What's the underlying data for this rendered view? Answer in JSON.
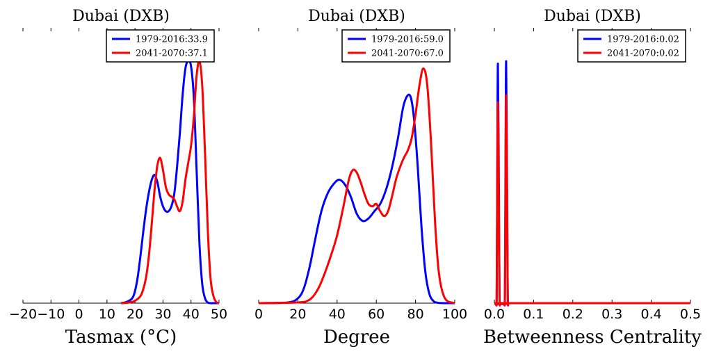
{
  "chart_data": [
    {
      "type": "line",
      "title": "Dubai (DXB)",
      "xlabel": "Tasmax ($^\\circ$C)",
      "xlabel_display": "Tasmax (°C)",
      "ylabel": "",
      "xlim": [
        -20,
        50
      ],
      "ylim": [
        0,
        1
      ],
      "xticks": [
        -20,
        -10,
        0,
        10,
        20,
        30,
        40,
        50
      ],
      "xtick_labels": [
        "−20",
        "−10",
        "0",
        "10",
        "20",
        "30",
        "40",
        "50"
      ],
      "legend_position": "top-right",
      "series": [
        {
          "name": "1979-2016:33.9",
          "color": "#0000ff",
          "x": [
            15,
            17,
            19,
            20,
            21,
            22,
            23,
            24,
            25,
            26,
            27,
            28,
            29,
            30,
            31,
            32,
            33,
            34,
            35,
            36,
            37,
            38,
            39,
            40,
            41,
            42,
            43,
            44,
            45,
            46,
            47,
            48,
            50
          ],
          "y": [
            0,
            0.005,
            0.02,
            0.05,
            0.11,
            0.2,
            0.3,
            0.39,
            0.46,
            0.51,
            0.53,
            0.5,
            0.44,
            0.4,
            0.38,
            0.38,
            0.4,
            0.45,
            0.56,
            0.7,
            0.86,
            0.97,
            1.0,
            0.98,
            0.85,
            0.55,
            0.25,
            0.08,
            0.02,
            0.003,
            0,
            0,
            0
          ]
        },
        {
          "name": "2041-2070:37.1",
          "color": "#ff0000",
          "x": [
            15,
            18,
            20,
            22,
            23,
            24,
            25,
            26,
            27,
            28,
            29,
            30,
            31,
            32,
            33,
            34,
            35,
            36,
            37,
            38,
            39,
            40,
            41,
            42,
            43,
            44,
            45,
            46,
            47,
            48,
            49,
            50
          ],
          "y": [
            0,
            0.003,
            0.01,
            0.03,
            0.06,
            0.11,
            0.2,
            0.33,
            0.47,
            0.57,
            0.6,
            0.55,
            0.48,
            0.45,
            0.44,
            0.43,
            0.4,
            0.38,
            0.42,
            0.51,
            0.58,
            0.65,
            0.77,
            0.94,
            1.0,
            0.9,
            0.62,
            0.3,
            0.1,
            0.03,
            0.005,
            0
          ]
        }
      ]
    },
    {
      "type": "line",
      "title": "Dubai (DXB)",
      "xlabel": "Degree",
      "xlabel_display": "Degree",
      "ylabel": "",
      "xlim": [
        0,
        100
      ],
      "ylim": [
        0,
        1
      ],
      "xticks": [
        0,
        20,
        40,
        60,
        80,
        100
      ],
      "xtick_labels": [
        "0",
        "20",
        "40",
        "60",
        "80",
        "100"
      ],
      "legend_position": "top-right",
      "series": [
        {
          "name": "1979-2016:59.0",
          "color": "#0000ff",
          "x": [
            0,
            15,
            20,
            23,
            26,
            29,
            32,
            35,
            38,
            41,
            44,
            47,
            50,
            53,
            56,
            59,
            62,
            65,
            68,
            71,
            74,
            77,
            79,
            81,
            83,
            85,
            87,
            89,
            91,
            95,
            100
          ],
          "y": [
            0,
            0.003,
            0.02,
            0.06,
            0.15,
            0.27,
            0.38,
            0.45,
            0.49,
            0.51,
            0.49,
            0.44,
            0.37,
            0.34,
            0.35,
            0.38,
            0.41,
            0.47,
            0.56,
            0.68,
            0.82,
            0.86,
            0.78,
            0.58,
            0.32,
            0.13,
            0.04,
            0.01,
            0.002,
            0,
            0
          ]
        },
        {
          "name": "2041-2070:67.0",
          "color": "#ff0000",
          "x": [
            0,
            20,
            25,
            28,
            31,
            34,
            37,
            40,
            43,
            46,
            48,
            50,
            52,
            54,
            56,
            58,
            60,
            62,
            64,
            66,
            68,
            70,
            72,
            74,
            76,
            78,
            80,
            82,
            84,
            86,
            88,
            90,
            92,
            95,
            100
          ],
          "y": [
            0,
            0.003,
            0.01,
            0.03,
            0.07,
            0.13,
            0.2,
            0.28,
            0.39,
            0.51,
            0.55,
            0.54,
            0.5,
            0.45,
            0.41,
            0.4,
            0.41,
            0.38,
            0.36,
            0.38,
            0.44,
            0.51,
            0.56,
            0.6,
            0.63,
            0.68,
            0.78,
            0.9,
            0.97,
            0.9,
            0.65,
            0.33,
            0.12,
            0.02,
            0
          ]
        }
      ]
    },
    {
      "type": "line",
      "title": "Dubai (DXB)",
      "xlabel": "Betweenness Centrality",
      "xlabel_display": "Betweenness Centrality",
      "ylabel": "",
      "xlim": [
        0.0,
        0.5
      ],
      "ylim": [
        0,
        1
      ],
      "xticks": [
        0.0,
        0.1,
        0.2,
        0.3,
        0.4,
        0.5
      ],
      "xtick_labels": [
        "0.0",
        "0.1",
        "0.2",
        "0.3",
        "0.4",
        "0.5"
      ],
      "legend_position": "top-right",
      "series": [
        {
          "name": "1979-2016:0.02",
          "color": "#0000ff",
          "x": [
            0.0,
            0.004,
            0.006,
            0.0075,
            0.009,
            0.011,
            0.013,
            0.015,
            0.018,
            0.022,
            0.025,
            0.027,
            0.0285,
            0.03,
            0.032,
            0.034,
            0.036,
            0.04,
            0.5
          ],
          "y": [
            0,
            0,
            0.05,
            0.6,
            0.99,
            0.6,
            0.05,
            0,
            0,
            0,
            0,
            0.05,
            0.6,
            1.0,
            0.6,
            0.05,
            0,
            0,
            0
          ]
        },
        {
          "name": "2041-2070:0.02",
          "color": "#ff0000",
          "x": [
            0.0,
            0.004,
            0.006,
            0.0075,
            0.009,
            0.011,
            0.013,
            0.015,
            0.018,
            0.022,
            0.025,
            0.027,
            0.0285,
            0.03,
            0.032,
            0.034,
            0.036,
            0.04,
            0.5
          ],
          "y": [
            0,
            0,
            0.04,
            0.5,
            0.83,
            0.5,
            0.04,
            0,
            0,
            0,
            0,
            0.04,
            0.5,
            0.86,
            0.5,
            0.04,
            0,
            0,
            0
          ]
        }
      ]
    }
  ]
}
